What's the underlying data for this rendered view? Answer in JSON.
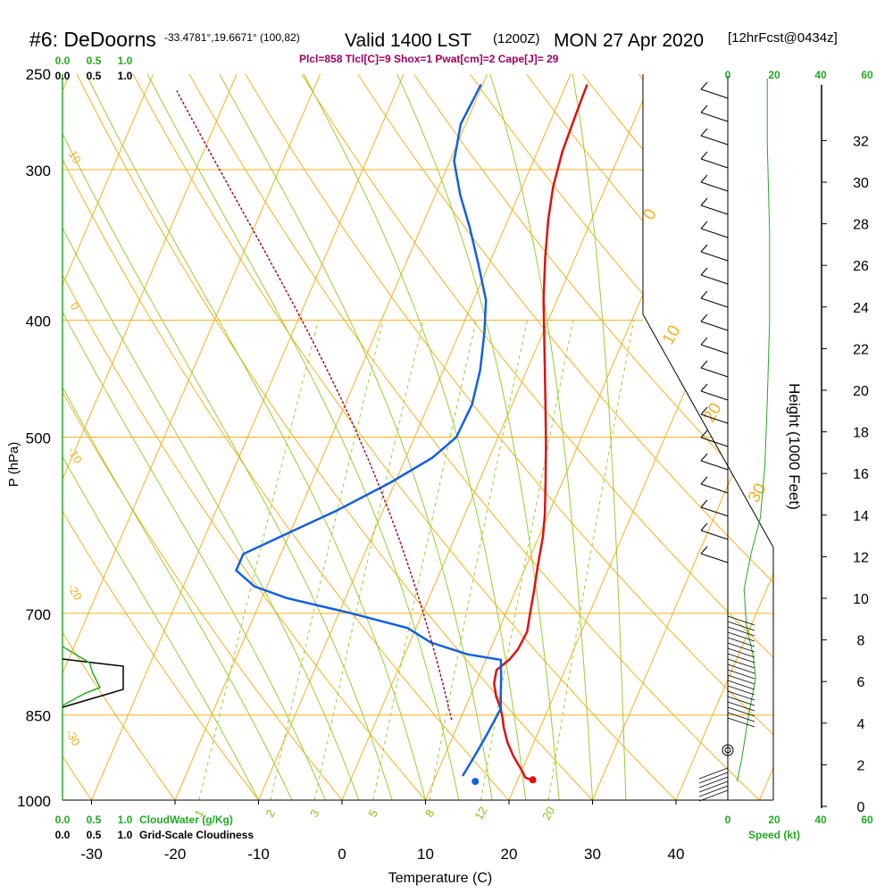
{
  "header": {
    "station": "#6: DeDoorns",
    "coords": "-33.4781°,19.6671° (100,82)",
    "valid": "Valid 1400 LST",
    "utc": "(1200Z)",
    "date": "MON 27 Apr 2020",
    "forecast": "[12hrFcst@0434z]",
    "params": "Plcl=858 Tlcl[C]=9 Shox=1 Pwat[cm]=2 Cape[J]= 29"
  },
  "chart_data": {
    "type": "line",
    "title": "#6: DeDoorns",
    "xlabel": "Temperature (C)",
    "ylabel": "P (hPa)",
    "y2label": "Height (1000 Feet)",
    "x_ticks": [
      -30,
      -20,
      -10,
      0,
      10,
      20,
      30,
      40
    ],
    "pressure_ticks": [
      250,
      300,
      400,
      500,
      700,
      850,
      1000
    ],
    "height_ticks": [
      0,
      2,
      4,
      6,
      8,
      10,
      12,
      14,
      16,
      18,
      20,
      22,
      24,
      26,
      28,
      30,
      32
    ],
    "series": [
      {
        "name": "temperature",
        "color": "#e01010",
        "points": [
          [
            -7.5,
            255
          ],
          [
            -7.3,
            270
          ],
          [
            -7.0,
            290
          ],
          [
            -6.3,
            310
          ],
          [
            -5.2,
            330
          ],
          [
            -3.6,
            355
          ],
          [
            -1.6,
            385
          ],
          [
            1.5,
            430
          ],
          [
            4.0,
            470
          ],
          [
            6.0,
            505
          ],
          [
            8.0,
            545
          ],
          [
            9.6,
            580
          ],
          [
            10.5,
            605
          ],
          [
            11.4,
            640
          ],
          [
            12.2,
            670
          ],
          [
            12.9,
            700
          ],
          [
            13.5,
            725
          ],
          [
            13.3,
            750
          ],
          [
            12.8,
            765
          ],
          [
            11.8,
            780
          ],
          [
            12.2,
            800
          ],
          [
            13.1,
            820
          ],
          [
            14.3,
            840
          ],
          [
            15.0,
            855
          ],
          [
            15.6,
            870
          ],
          [
            16.8,
            895
          ],
          [
            18.3,
            920
          ],
          [
            20.0,
            945
          ],
          [
            20.8,
            958
          ],
          [
            21.6,
            962
          ]
        ]
      },
      {
        "name": "dewpoint",
        "color": "#1060e0",
        "points": [
          [
            -20.2,
            255
          ],
          [
            -20.6,
            275
          ],
          [
            -19.5,
            295
          ],
          [
            -17.0,
            315
          ],
          [
            -14.2,
            335
          ],
          [
            -11.2,
            360
          ],
          [
            -8.5,
            385
          ],
          [
            -7.0,
            410
          ],
          [
            -5.6,
            440
          ],
          [
            -4.8,
            470
          ],
          [
            -5.0,
            500
          ],
          [
            -6.8,
            520
          ],
          [
            -10.5,
            545
          ],
          [
            -15.5,
            575
          ],
          [
            -21.0,
            605
          ],
          [
            -24.5,
            625
          ],
          [
            -24.5,
            645
          ],
          [
            -21.5,
            665
          ],
          [
            -17.0,
            680
          ],
          [
            -8.5,
            700
          ],
          [
            -1.0,
            720
          ],
          [
            2.5,
            740
          ],
          [
            7.5,
            757
          ],
          [
            11.8,
            765
          ],
          [
            12.7,
            790
          ],
          [
            13.5,
            815
          ],
          [
            14.3,
            840
          ],
          [
            14.0,
            880
          ],
          [
            13.6,
            920
          ],
          [
            13.2,
            955
          ]
        ]
      }
    ],
    "surface_dewpoint": [
      15.0,
      965
    ],
    "surface_temperature": [
      21.8,
      962
    ],
    "isotherm_labels": [
      10,
      0,
      -10,
      -20,
      -30,
      0,
      10,
      20,
      30
    ],
    "mixing_ratio_labels": [
      1,
      2,
      3,
      5,
      8,
      12,
      20
    ],
    "cloud_axis_labels": [
      "0.0",
      "0.5",
      "1.0"
    ],
    "cloudwater_label": "CloudWater (g/Kg)",
    "cloudiness_label": "Grid-Scale Cloudiness",
    "wind_speed_ticks": [
      0,
      20,
      40,
      60
    ],
    "wind_speed_label": "Speed (kt)"
  }
}
